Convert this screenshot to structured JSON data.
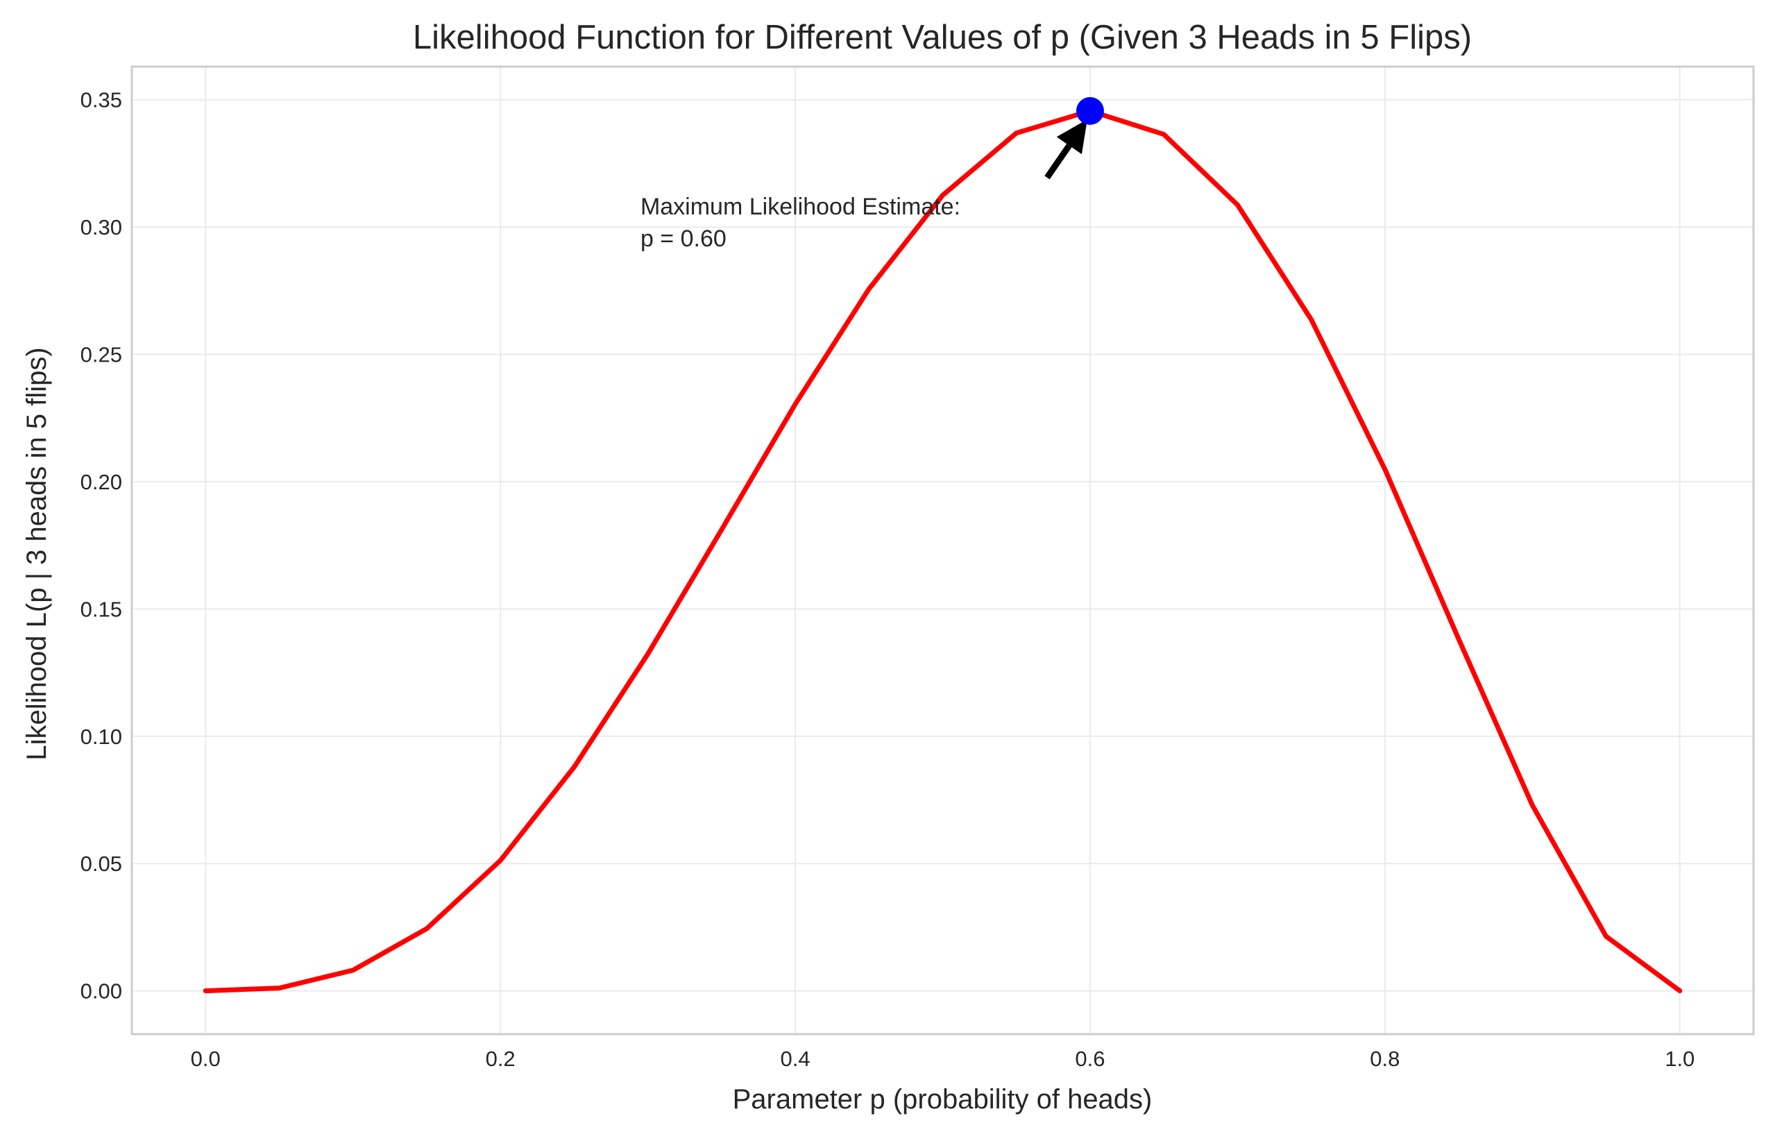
{
  "chart_data": {
    "type": "line",
    "title": "Likelihood Function for Different Values of p (Given 3 Heads in 5 Flips)",
    "xlabel": "Parameter p (probability of heads)",
    "ylabel": "Likelihood L(p | 3 heads in 5 flips)",
    "xlim": [
      -0.05,
      1.05
    ],
    "ylim": [
      -0.017,
      0.363
    ],
    "grid": true,
    "x_ticks": [
      "0.0",
      "0.2",
      "0.4",
      "0.6",
      "0.8",
      "1.0"
    ],
    "y_ticks": [
      "0.00",
      "0.05",
      "0.10",
      "0.15",
      "0.20",
      "0.25",
      "0.30",
      "0.35"
    ],
    "series": [
      {
        "color": "#ff0000",
        "x": [
          0.0,
          0.05,
          0.1,
          0.15,
          0.2,
          0.25,
          0.3,
          0.35,
          0.4,
          0.45,
          0.5,
          0.55,
          0.6,
          0.65,
          0.7,
          0.75,
          0.8,
          0.85,
          0.9,
          0.95,
          1.0
        ],
        "y": [
          0.0,
          0.0011,
          0.0081,
          0.0244,
          0.0512,
          0.0879,
          0.1323,
          0.1811,
          0.2304,
          0.2757,
          0.3125,
          0.3369,
          0.3456,
          0.3364,
          0.3087,
          0.2637,
          0.2048,
          0.1382,
          0.0729,
          0.0214,
          0.0
        ]
      }
    ],
    "marker": {
      "x": 0.6,
      "y": 0.3456,
      "color": "#0000ff"
    },
    "annotation": {
      "line1": "Maximum Likelihood Estimate:",
      "line2": "p = 0.60",
      "text_x": 0.295,
      "text_y": 0.305,
      "arrow_color": "#000000"
    }
  }
}
